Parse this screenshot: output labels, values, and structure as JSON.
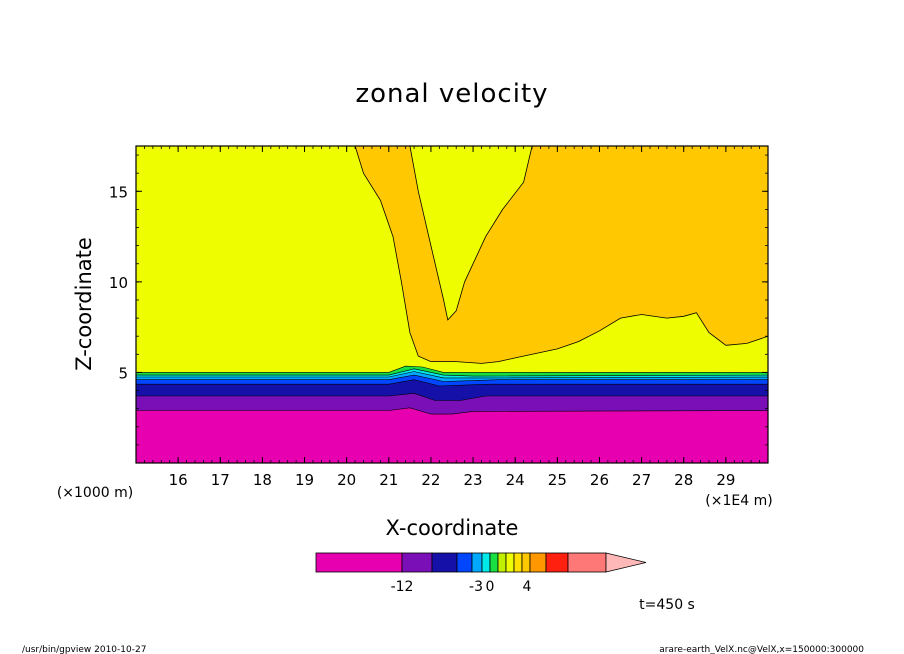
{
  "chart_data": {
    "type": "contour",
    "title": "zonal velocity",
    "xlabel": "X-coordinate",
    "ylabel": "Z-coordinate",
    "x_unit_label": "(×1E4 m)",
    "y_unit_label": "(×1000 m)",
    "xlim": [
      15.0,
      30.0
    ],
    "ylim": [
      0.0,
      17.5
    ],
    "x_ticks": [
      16,
      17,
      18,
      19,
      20,
      21,
      22,
      23,
      24,
      25,
      26,
      27,
      28,
      29
    ],
    "y_ticks": [
      5,
      10,
      15
    ],
    "fill_layers": [
      {
        "name": "very negative",
        "color": "#e600b0",
        "top": [
          [
            15,
            2.9
          ],
          [
            21,
            2.9
          ],
          [
            21.5,
            3.05
          ],
          [
            22,
            2.7
          ],
          [
            22.5,
            2.7
          ],
          [
            23,
            2.85
          ],
          [
            30,
            2.9
          ]
        ]
      },
      {
        "name": "purple",
        "color": "#7a0fb8",
        "top": [
          [
            15,
            3.7
          ],
          [
            21,
            3.7
          ],
          [
            21.6,
            3.85
          ],
          [
            22.1,
            3.45
          ],
          [
            22.7,
            3.45
          ],
          [
            23.3,
            3.7
          ],
          [
            30,
            3.7
          ]
        ]
      },
      {
        "name": "dark blue",
        "color": "#1410a8",
        "top": [
          [
            15,
            4.35
          ],
          [
            21,
            4.35
          ],
          [
            21.6,
            4.6
          ],
          [
            22.2,
            4.25
          ],
          [
            22.8,
            4.3
          ],
          [
            23.4,
            4.35
          ],
          [
            30,
            4.35
          ]
        ]
      },
      {
        "name": "blue",
        "color": "#0046ff",
        "top": [
          [
            15,
            4.6
          ],
          [
            21,
            4.6
          ],
          [
            21.6,
            4.85
          ],
          [
            22.3,
            4.5
          ],
          [
            23,
            4.55
          ],
          [
            23.6,
            4.6
          ],
          [
            30,
            4.6
          ]
        ]
      },
      {
        "name": "light blue",
        "color": "#00a8ff",
        "top": [
          [
            15,
            4.75
          ],
          [
            21,
            4.75
          ],
          [
            21.6,
            5.05
          ],
          [
            22.3,
            4.7
          ],
          [
            23,
            4.7
          ],
          [
            30,
            4.75
          ]
        ]
      },
      {
        "name": "cyan",
        "color": "#00e8e8",
        "top": [
          [
            15,
            4.85
          ],
          [
            21,
            4.85
          ],
          [
            21.6,
            5.2
          ],
          [
            22.3,
            4.85
          ],
          [
            23,
            4.8
          ],
          [
            30,
            4.85
          ]
        ]
      },
      {
        "name": "green",
        "color": "#18e040",
        "top": [
          [
            15,
            5.0
          ],
          [
            21,
            5.0
          ],
          [
            21.4,
            5.35
          ],
          [
            21.8,
            5.3
          ],
          [
            22.3,
            5.0
          ],
          [
            30,
            5.0
          ]
        ]
      },
      {
        "name": "near zero",
        "color": "#eefe00",
        "top": [
          [
            15,
            17.5
          ],
          [
            30,
            17.5
          ]
        ]
      }
    ],
    "orange_regions": [
      {
        "name": "upper plume",
        "color": "#ffc800",
        "outline": [
          [
            20.2,
            17.5
          ],
          [
            20.4,
            16.0
          ],
          [
            20.8,
            14.5
          ],
          [
            21.1,
            12.5
          ],
          [
            21.3,
            10.0
          ],
          [
            21.5,
            7.2
          ],
          [
            21.7,
            5.9
          ],
          [
            22.0,
            5.6
          ],
          [
            22.6,
            5.6
          ],
          [
            23.2,
            5.5
          ],
          [
            23.6,
            5.6
          ],
          [
            24.0,
            5.8
          ],
          [
            25.0,
            6.3
          ],
          [
            25.5,
            6.7
          ],
          [
            26.0,
            7.3
          ],
          [
            26.5,
            8.0
          ],
          [
            27.0,
            8.2
          ],
          [
            27.6,
            8.0
          ],
          [
            28.0,
            8.1
          ],
          [
            28.3,
            8.3
          ],
          [
            28.6,
            7.2
          ],
          [
            29.0,
            6.5
          ],
          [
            29.5,
            6.6
          ],
          [
            30.0,
            7.0
          ],
          [
            30.0,
            17.5
          ],
          [
            24.4,
            17.5
          ],
          [
            24.2,
            15.5
          ],
          [
            23.7,
            14.0
          ],
          [
            23.3,
            12.5
          ],
          [
            22.8,
            10.0
          ],
          [
            22.6,
            8.4
          ],
          [
            22.4,
            7.9
          ],
          [
            22.3,
            9.0
          ],
          [
            22.0,
            12.0
          ],
          [
            21.7,
            15.0
          ],
          [
            21.5,
            17.5
          ]
        ]
      }
    ],
    "colorbar": {
      "segments": [
        {
          "color": "#e600b0",
          "w": 86
        },
        {
          "color": "#7a0fb8",
          "w": 30
        },
        {
          "color": "#1410a8",
          "w": 25
        },
        {
          "color": "#0046ff",
          "w": 15
        },
        {
          "color": "#00a8ff",
          "w": 10
        },
        {
          "color": "#00e8e8",
          "w": 8
        },
        {
          "color": "#18e040",
          "w": 8
        },
        {
          "color": "#c0f000",
          "w": 8
        },
        {
          "color": "#eefe00",
          "w": 8
        },
        {
          "color": "#ffe000",
          "w": 8
        },
        {
          "color": "#ffc800",
          "w": 8
        },
        {
          "color": "#ff9800",
          "w": 16
        },
        {
          "color": "#ff6000",
          "w": 0
        },
        {
          "color": "#ff2010",
          "w": 22
        },
        {
          "color": "#ff7878",
          "w": 38
        }
      ],
      "arrow_color": "#ffb8b8",
      "tick_labels": [
        "-12",
        "-3",
        "0",
        "4"
      ]
    },
    "time_label": "t=450 s",
    "footer_left": "/usr/bin/gpview  2010-10-27",
    "footer_right": "arare-earth_VelX.nc@VelX,x=150000:300000"
  }
}
